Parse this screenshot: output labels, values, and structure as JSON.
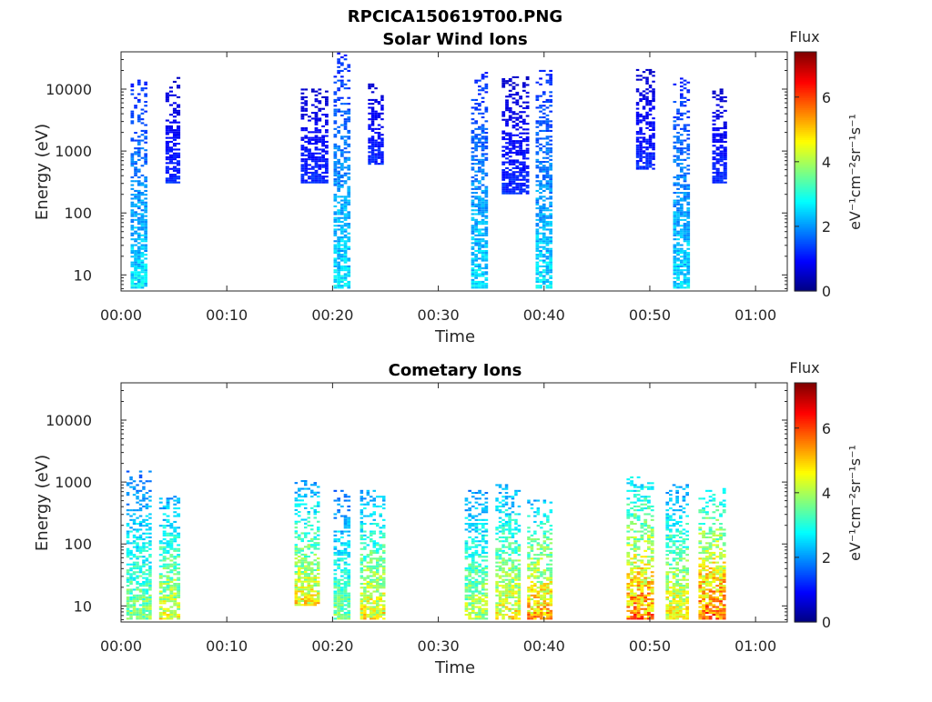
{
  "figure_title": "RPCICA150619T00.PNG",
  "colorbar": {
    "title": "Flux",
    "ticks": [
      "0",
      "2",
      "4",
      "6"
    ],
    "range": [
      0,
      7.4
    ],
    "colormap": "jet"
  },
  "chart_data": [
    {
      "type": "heatmap",
      "title": "Solar Wind Ions",
      "xlabel": "Time",
      "ylabel": "Energy (eV)",
      "yscale": "log",
      "ylim": [
        5.5,
        40000
      ],
      "xlim_min": [
        0,
        63
      ],
      "x_ticks": [
        "00:00",
        "00:10",
        "00:20",
        "00:30",
        "00:40",
        "00:50",
        "01:00"
      ],
      "y_ticks": [
        "10",
        "100",
        "1000",
        "10000"
      ],
      "colorbar_label": "eV⁻¹cm⁻²sr⁻¹s⁻¹",
      "bursts": [
        {
          "t_min": 1.7,
          "width_min": 1.6,
          "e_low": 6,
          "e_high": 15000,
          "peak_flux": 2.8
        },
        {
          "t_min": 4.9,
          "width_min": 1.4,
          "e_low": 300,
          "e_high": 15000,
          "peak_flux": 1.3
        },
        {
          "t_min": 18.3,
          "width_min": 2.6,
          "e_low": 300,
          "e_high": 10000,
          "peak_flux": 1.3
        },
        {
          "t_min": 20.9,
          "width_min": 1.6,
          "e_low": 6,
          "e_high": 38000,
          "peak_flux": 2.8
        },
        {
          "t_min": 24.1,
          "width_min": 1.5,
          "e_low": 600,
          "e_high": 12000,
          "peak_flux": 1.3
        },
        {
          "t_min": 33.9,
          "width_min": 1.6,
          "e_low": 6,
          "e_high": 18000,
          "peak_flux": 2.8
        },
        {
          "t_min": 37.3,
          "width_min": 2.6,
          "e_low": 200,
          "e_high": 15000,
          "peak_flux": 1.3
        },
        {
          "t_min": 40.0,
          "width_min": 1.6,
          "e_low": 6,
          "e_high": 20000,
          "peak_flux": 2.8
        },
        {
          "t_min": 49.6,
          "width_min": 1.8,
          "e_low": 500,
          "e_high": 20000,
          "peak_flux": 1.3
        },
        {
          "t_min": 53.0,
          "width_min": 1.6,
          "e_low": 6,
          "e_high": 15000,
          "peak_flux": 2.8
        },
        {
          "t_min": 56.6,
          "width_min": 1.4,
          "e_low": 300,
          "e_high": 10000,
          "peak_flux": 1.3
        }
      ]
    },
    {
      "type": "heatmap",
      "title": "Cometary Ions",
      "xlabel": "Time",
      "ylabel": "Energy (eV)",
      "yscale": "log",
      "ylim": [
        5.5,
        40000
      ],
      "xlim_min": [
        0,
        63
      ],
      "x_ticks": [
        "00:00",
        "00:10",
        "00:20",
        "00:30",
        "00:40",
        "00:50",
        "01:00"
      ],
      "y_ticks": [
        "10",
        "100",
        "1000",
        "10000"
      ],
      "colorbar_label": "eV⁻¹cm⁻²sr⁻¹s⁻¹",
      "bursts": [
        {
          "t_min": 1.7,
          "width_min": 2.4,
          "e_low": 6,
          "e_high": 1500,
          "peak_flux": 4.0
        },
        {
          "t_min": 4.6,
          "width_min": 2.0,
          "e_low": 6,
          "e_high": 600,
          "peak_flux": 4.8
        },
        {
          "t_min": 17.6,
          "width_min": 2.4,
          "e_low": 10,
          "e_high": 1000,
          "peak_flux": 5.0
        },
        {
          "t_min": 20.9,
          "width_min": 1.6,
          "e_low": 6,
          "e_high": 700,
          "peak_flux": 4.0
        },
        {
          "t_min": 23.8,
          "width_min": 2.4,
          "e_low": 6,
          "e_high": 700,
          "peak_flux": 5.0
        },
        {
          "t_min": 33.6,
          "width_min": 2.2,
          "e_low": 6,
          "e_high": 800,
          "peak_flux": 4.5
        },
        {
          "t_min": 36.6,
          "width_min": 2.4,
          "e_low": 6,
          "e_high": 900,
          "peak_flux": 5.0
        },
        {
          "t_min": 39.6,
          "width_min": 2.4,
          "e_low": 6,
          "e_high": 500,
          "peak_flux": 5.6
        },
        {
          "t_min": 49.1,
          "width_min": 2.6,
          "e_low": 6,
          "e_high": 1200,
          "peak_flux": 6.0
        },
        {
          "t_min": 52.6,
          "width_min": 2.2,
          "e_low": 6,
          "e_high": 900,
          "peak_flux": 5.0
        },
        {
          "t_min": 55.9,
          "width_min": 2.6,
          "e_low": 6,
          "e_high": 800,
          "peak_flux": 6.2
        }
      ]
    }
  ]
}
